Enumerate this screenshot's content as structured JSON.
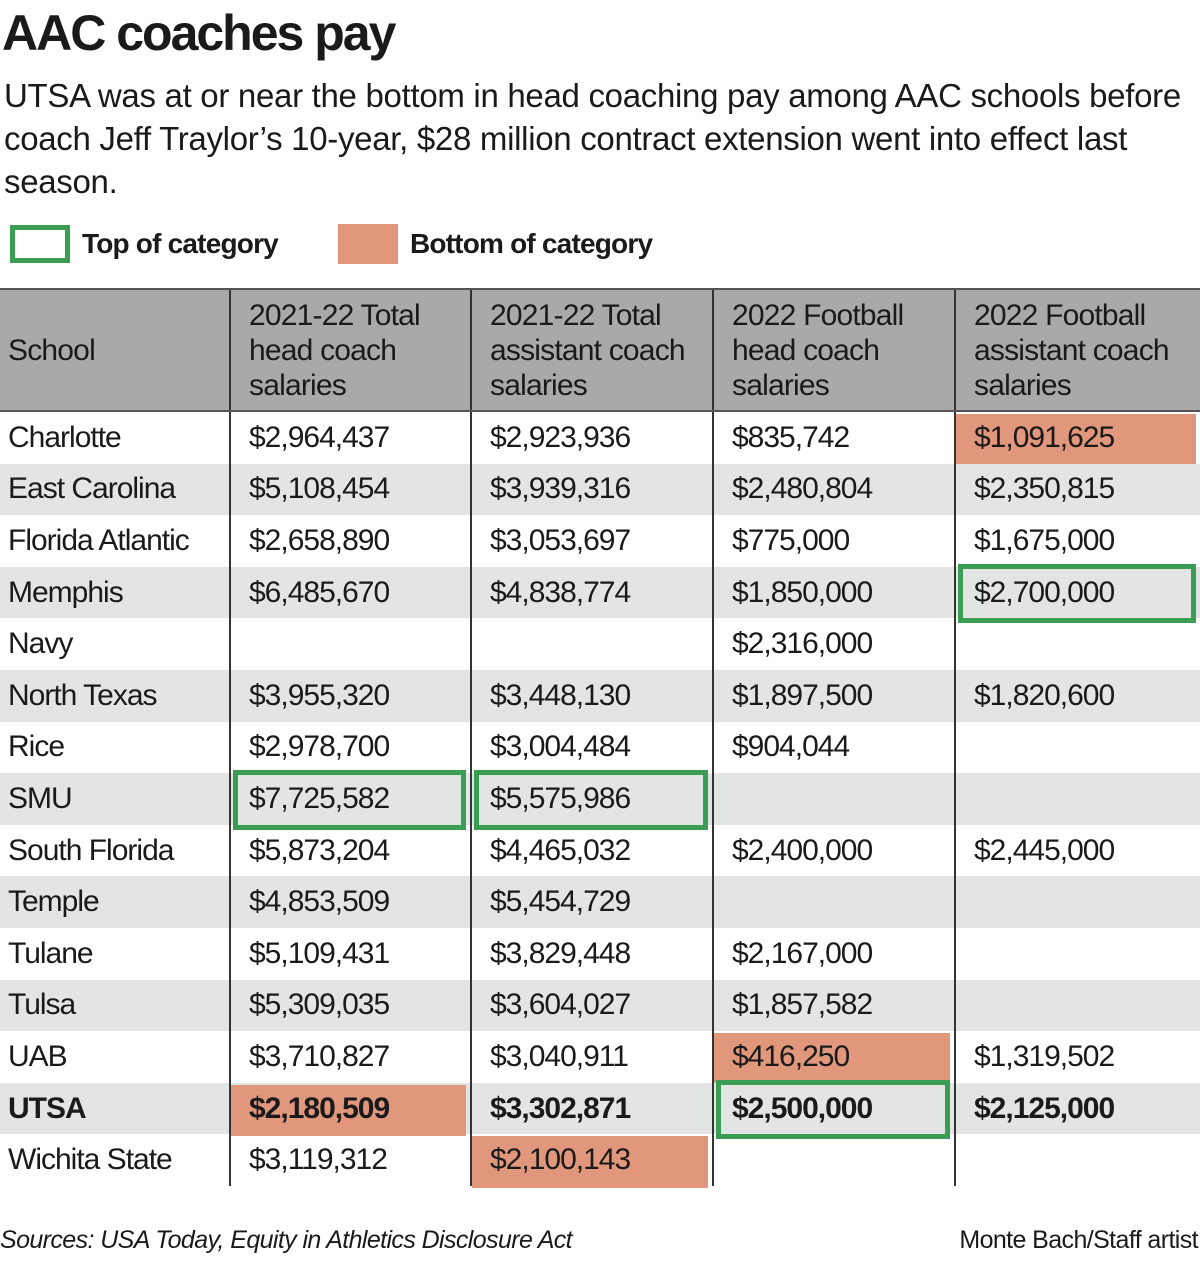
{
  "title": "AAC coaches pay",
  "subtitle": "UTSA was at or near the bottom in head coaching pay among AAC schools before coach Jeff Traylor’s 10-year, $28 million contract extension went into effect last season.",
  "legend": {
    "top_label": "Top of category",
    "bottom_label": "Bottom of category",
    "top_color": "#3a9d54",
    "bottom_color": "#e0977c"
  },
  "chart_data": {
    "type": "table",
    "columns": [
      "School",
      "2021-22 Total head coach salaries",
      "2021-22 Total assistant coach salaries",
      "2022 Football head coach salaries",
      "2022 Football assistant coach salaries"
    ],
    "rows": [
      {
        "cells": [
          "Charlotte",
          "$2,964,437",
          "$2,923,936",
          "$835,742",
          "$1,091,625"
        ],
        "highlight": [
          "",
          "",
          "",
          "",
          "bottom"
        ]
      },
      {
        "cells": [
          "East Carolina",
          "$5,108,454",
          "$3,939,316",
          "$2,480,804",
          "$2,350,815"
        ],
        "highlight": [
          "",
          "",
          "",
          "",
          ""
        ]
      },
      {
        "cells": [
          "Florida Atlantic",
          "$2,658,890",
          "$3,053,697",
          "$775,000",
          "$1,675,000"
        ],
        "highlight": [
          "",
          "",
          "",
          "",
          ""
        ]
      },
      {
        "cells": [
          "Memphis",
          "$6,485,670",
          "$4,838,774",
          "$1,850,000",
          "$2,700,000"
        ],
        "highlight": [
          "",
          "",
          "",
          "",
          "top"
        ]
      },
      {
        "cells": [
          "Navy",
          "",
          "",
          "$2,316,000",
          ""
        ],
        "highlight": [
          "",
          "",
          "",
          "",
          ""
        ]
      },
      {
        "cells": [
          "North Texas",
          "$3,955,320",
          "$3,448,130",
          "$1,897,500",
          "$1,820,600"
        ],
        "highlight": [
          "",
          "",
          "",
          "",
          ""
        ]
      },
      {
        "cells": [
          "Rice",
          "$2,978,700",
          "$3,004,484",
          "$904,044",
          ""
        ],
        "highlight": [
          "",
          "",
          "",
          "",
          ""
        ]
      },
      {
        "cells": [
          "SMU",
          "$7,725,582",
          "$5,575,986",
          "",
          ""
        ],
        "highlight": [
          "",
          "top",
          "top",
          "",
          ""
        ]
      },
      {
        "cells": [
          "South Florida",
          "$5,873,204",
          "$4,465,032",
          "$2,400,000",
          "$2,445,000"
        ],
        "highlight": [
          "",
          "",
          "",
          "",
          ""
        ]
      },
      {
        "cells": [
          "Temple",
          "$4,853,509",
          "$5,454,729",
          "",
          ""
        ],
        "highlight": [
          "",
          "",
          "",
          "",
          ""
        ]
      },
      {
        "cells": [
          "Tulane",
          "$5,109,431",
          "$3,829,448",
          "$2,167,000",
          ""
        ],
        "highlight": [
          "",
          "",
          "",
          "",
          ""
        ]
      },
      {
        "cells": [
          "Tulsa",
          "$5,309,035",
          "$3,604,027",
          "$1,857,582",
          ""
        ],
        "highlight": [
          "",
          "",
          "",
          "",
          ""
        ]
      },
      {
        "cells": [
          "UAB",
          "$3,710,827",
          "$3,040,911",
          "$416,250",
          "$1,319,502"
        ],
        "highlight": [
          "",
          "",
          "",
          "bottom",
          ""
        ]
      },
      {
        "cells": [
          "UTSA",
          "$2,180,509",
          "$3,302,871",
          "$2,500,000",
          "$2,125,000"
        ],
        "highlight": [
          "",
          "bottom",
          "",
          "top",
          ""
        ],
        "bold": true
      },
      {
        "cells": [
          "Wichita State",
          "$3,119,312",
          "$2,100,143",
          "",
          ""
        ],
        "highlight": [
          "",
          "",
          "bottom",
          "",
          ""
        ]
      }
    ]
  },
  "footer": {
    "source": "Sources: USA Today, Equity in Athletics Disclosure Act",
    "credit": "Monte Bach/Staff artist"
  }
}
